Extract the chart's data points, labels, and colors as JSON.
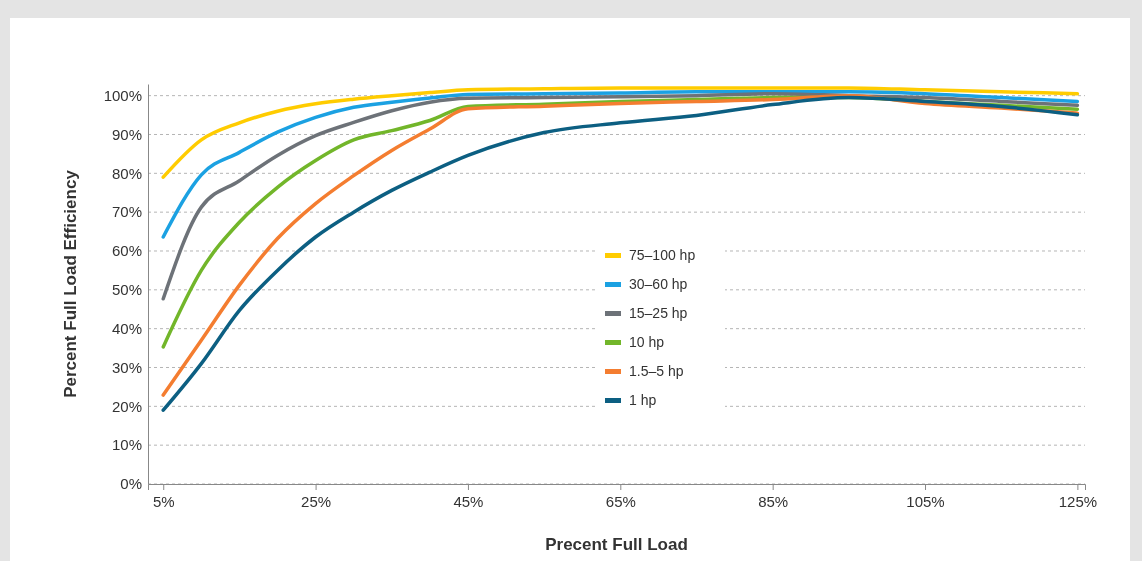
{
  "chart_data": {
    "type": "line",
    "xlabel": "Precent Full Load",
    "ylabel": "Percent Full Load Efficiency",
    "x": [
      5,
      10,
      15,
      20,
      25,
      30,
      35,
      40,
      45,
      55,
      65,
      75,
      85,
      95,
      105,
      115,
      125
    ],
    "xlim": [
      3,
      126
    ],
    "ylim": [
      0,
      103
    ],
    "xticks": [
      {
        "value": 5,
        "label": "5%"
      },
      {
        "value": 25,
        "label": "25%"
      },
      {
        "value": 45,
        "label": "45%"
      },
      {
        "value": 65,
        "label": "65%"
      },
      {
        "value": 85,
        "label": "85%"
      },
      {
        "value": 105,
        "label": "105%"
      },
      {
        "value": 125,
        "label": "125%"
      }
    ],
    "yticks": [
      {
        "value": 0,
        "label": "0%"
      },
      {
        "value": 10,
        "label": "10%"
      },
      {
        "value": 20,
        "label": "20%"
      },
      {
        "value": 30,
        "label": "30%"
      },
      {
        "value": 40,
        "label": "40%"
      },
      {
        "value": 50,
        "label": "50%"
      },
      {
        "value": 60,
        "label": "60%"
      },
      {
        "value": 70,
        "label": "70%"
      },
      {
        "value": 80,
        "label": "80%"
      },
      {
        "value": 90,
        "label": "90%"
      },
      {
        "value": 100,
        "label": "100%"
      }
    ],
    "grid": "y",
    "legend": "center",
    "marker": "none",
    "line_style": "solid",
    "series": [
      {
        "name": "75–100 hp",
        "color": "#ffcc00",
        "values": [
          79,
          88.6,
          93,
          96,
          97.9,
          99.1,
          100,
          100.8,
          101.5,
          101.8,
          102,
          102,
          102,
          102,
          101.5,
          101,
          100.5
        ]
      },
      {
        "name": "30–60 hp",
        "color": "#1ba1e2",
        "values": [
          63.6,
          79.6,
          85.4,
          90.6,
          94.4,
          97,
          98.3,
          99.4,
          100.3,
          100.5,
          100.7,
          101,
          101,
          101,
          100.5,
          99.5,
          98.5
        ]
      },
      {
        "name": "15–25 hp",
        "color": "#6d7278",
        "values": [
          47.7,
          71.3,
          78.1,
          84.6,
          89.7,
          93.1,
          96.1,
          98.3,
          99.3,
          99.5,
          99.7,
          100,
          100.5,
          100,
          99.5,
          98.5,
          97.5
        ]
      },
      {
        "name": "10 hp",
        "color": "#72b62a",
        "values": [
          35.3,
          55,
          67.4,
          76.4,
          83.3,
          88.6,
          91,
          93.6,
          97.2,
          97.8,
          98.5,
          99,
          99.5,
          99.5,
          98.5,
          97.5,
          96.5
        ]
      },
      {
        "name": "1.5–5 hp",
        "color": "#f47d30",
        "values": [
          22.9,
          37,
          51.2,
          63.2,
          72.2,
          79.4,
          85.9,
          91.4,
          96.6,
          97.3,
          98,
          98.5,
          99,
          100,
          98,
          96.8,
          95.5
        ]
      },
      {
        "name": "1 hp",
        "color": "#0c5f82",
        "values": [
          19,
          31,
          44.7,
          55,
          63.6,
          70,
          75.6,
          80.3,
          84.6,
          90.5,
          93,
          94.9,
          97.7,
          99.5,
          98.5,
          97.2,
          95.1
        ]
      }
    ]
  }
}
